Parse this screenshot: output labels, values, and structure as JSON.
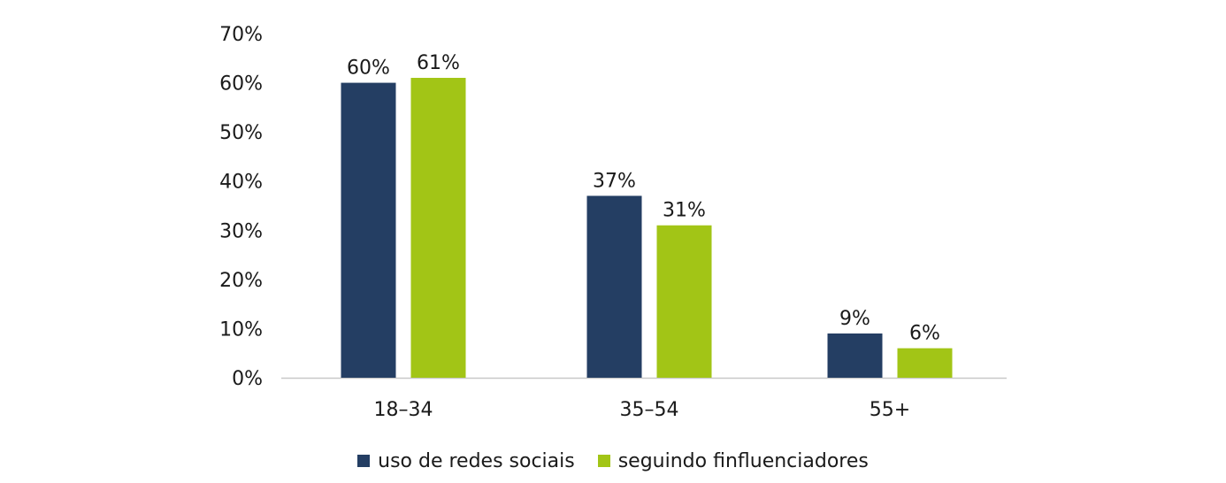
{
  "chart_data": {
    "type": "bar",
    "categories": [
      "18–34",
      "35–54",
      "55+"
    ],
    "series": [
      {
        "name": "uso de redes sociais",
        "values": [
          60,
          37,
          9
        ],
        "labels": [
          "60%",
          "37%",
          "9%"
        ],
        "color": "#243e63"
      },
      {
        "name": "seguindo finfluenciadores",
        "values": [
          61,
          31,
          6
        ],
        "labels": [
          "61%",
          "31%",
          "6%"
        ],
        "color": "#a2c516"
      }
    ],
    "y_ticks": [
      0,
      10,
      20,
      30,
      40,
      50,
      60,
      70
    ],
    "y_tick_labels": [
      "0%",
      "10%",
      "20%",
      "30%",
      "40%",
      "50%",
      "60%",
      "70%"
    ],
    "ylim": [
      0,
      70
    ],
    "grid": false,
    "legend_position": "bottom",
    "axis_color": "#c8c8c8"
  }
}
